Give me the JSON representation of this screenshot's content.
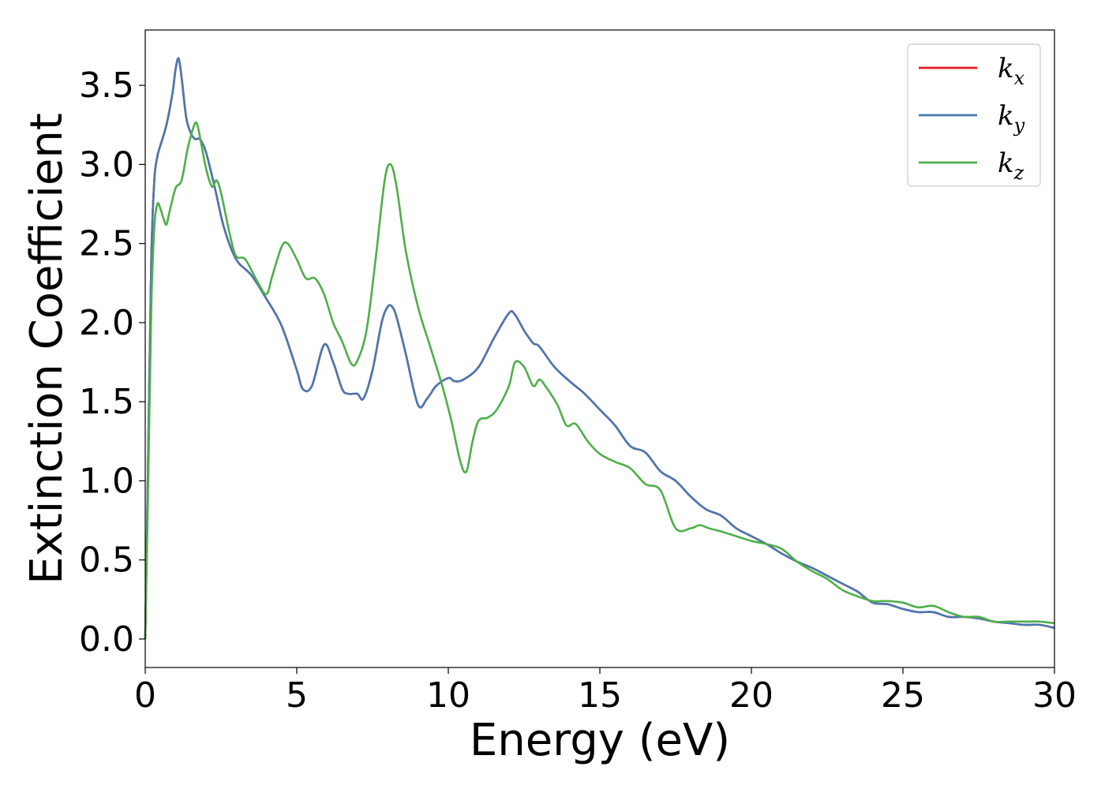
{
  "chart_data": {
    "type": "line",
    "title": "",
    "xlabel": "Energy (eV)",
    "ylabel": "Extinction Coefficient",
    "xlim": [
      0,
      30
    ],
    "ylim": [
      -0.18,
      3.85
    ],
    "xticks": [
      0,
      5,
      10,
      15,
      20,
      25,
      30
    ],
    "xtick_labels": [
      "0",
      "5",
      "10",
      "15",
      "20",
      "25",
      "30"
    ],
    "yticks": [
      0.0,
      0.5,
      1.0,
      1.5,
      2.0,
      2.5,
      3.0,
      3.5
    ],
    "ytick_labels": [
      "0.0",
      "0.5",
      "1.0",
      "1.5",
      "2.0",
      "2.5",
      "3.0",
      "3.5"
    ],
    "grid": false,
    "legend_position": "top-right",
    "legend": [
      {
        "name": "k",
        "sub": "x",
        "color": "#e41a1c"
      },
      {
        "name": "k",
        "sub": "y",
        "color": "#4a78b0"
      },
      {
        "name": "k",
        "sub": "z",
        "color": "#4daf4a"
      }
    ],
    "series": [
      {
        "name": "k_x",
        "color": "#e41a1c",
        "x": [
          0,
          0.1,
          0.2,
          0.3,
          0.4,
          0.5,
          0.7,
          0.9,
          1.0,
          1.1,
          1.2,
          1.35,
          1.5,
          1.65,
          1.8,
          2.0,
          2.3,
          2.6,
          3.0,
          3.5,
          4.0,
          4.5,
          5.0,
          5.2,
          5.5,
          5.9,
          6.2,
          6.5,
          6.7,
          7.0,
          7.2,
          7.5,
          7.8,
          8.0,
          8.15,
          8.3,
          8.6,
          9.0,
          9.3,
          9.6,
          10.0,
          10.2,
          10.5,
          11.0,
          11.5,
          12.0,
          12.2,
          12.5,
          12.8,
          13.0,
          13.5,
          14.0,
          14.5,
          15.0,
          15.5,
          16.0,
          16.5,
          17.0,
          17.5,
          18.0,
          18.5,
          19.0,
          19.5,
          20.0,
          20.5,
          21.0,
          21.5,
          22.0,
          22.5,
          23.0,
          23.5,
          24.0,
          24.5,
          25.0,
          25.5,
          26.0,
          26.5,
          27.0,
          27.5,
          28.0,
          28.5,
          29.0,
          29.5,
          30.0
        ],
        "values": [
          0.0,
          1.2,
          2.4,
          2.9,
          3.05,
          3.12,
          3.25,
          3.45,
          3.6,
          3.67,
          3.55,
          3.3,
          3.2,
          3.16,
          3.16,
          3.08,
          2.85,
          2.6,
          2.4,
          2.3,
          2.15,
          1.98,
          1.7,
          1.58,
          1.6,
          1.86,
          1.75,
          1.58,
          1.55,
          1.55,
          1.52,
          1.7,
          2.0,
          2.1,
          2.1,
          2.03,
          1.8,
          1.48,
          1.52,
          1.6,
          1.65,
          1.63,
          1.64,
          1.72,
          1.9,
          2.06,
          2.05,
          1.95,
          1.87,
          1.85,
          1.72,
          1.63,
          1.55,
          1.45,
          1.35,
          1.22,
          1.18,
          1.06,
          1.0,
          0.9,
          0.82,
          0.78,
          0.7,
          0.65,
          0.6,
          0.54,
          0.49,
          0.45,
          0.4,
          0.35,
          0.3,
          0.23,
          0.22,
          0.19,
          0.17,
          0.17,
          0.14,
          0.14,
          0.13,
          0.11,
          0.1,
          0.09,
          0.09,
          0.07
        ]
      },
      {
        "name": "k_y",
        "color": "#4a78b0",
        "x": [
          0,
          0.1,
          0.2,
          0.3,
          0.4,
          0.5,
          0.7,
          0.9,
          1.0,
          1.1,
          1.2,
          1.35,
          1.5,
          1.65,
          1.8,
          2.0,
          2.3,
          2.6,
          3.0,
          3.5,
          4.0,
          4.5,
          5.0,
          5.2,
          5.5,
          5.9,
          6.2,
          6.5,
          6.7,
          7.0,
          7.2,
          7.5,
          7.8,
          8.0,
          8.15,
          8.3,
          8.6,
          9.0,
          9.3,
          9.6,
          10.0,
          10.2,
          10.5,
          11.0,
          11.5,
          12.0,
          12.2,
          12.5,
          12.8,
          13.0,
          13.5,
          14.0,
          14.5,
          15.0,
          15.5,
          16.0,
          16.5,
          17.0,
          17.5,
          18.0,
          18.5,
          19.0,
          19.5,
          20.0,
          20.5,
          21.0,
          21.5,
          22.0,
          22.5,
          23.0,
          23.5,
          24.0,
          24.5,
          25.0,
          25.5,
          26.0,
          26.5,
          27.0,
          27.5,
          28.0,
          28.5,
          29.0,
          29.5,
          30.0
        ],
        "values": [
          0.0,
          1.2,
          2.4,
          2.9,
          3.05,
          3.12,
          3.25,
          3.45,
          3.6,
          3.67,
          3.55,
          3.3,
          3.2,
          3.16,
          3.16,
          3.08,
          2.85,
          2.6,
          2.4,
          2.3,
          2.15,
          1.98,
          1.7,
          1.58,
          1.6,
          1.86,
          1.75,
          1.58,
          1.55,
          1.55,
          1.52,
          1.7,
          2.0,
          2.1,
          2.1,
          2.03,
          1.8,
          1.48,
          1.52,
          1.6,
          1.65,
          1.63,
          1.64,
          1.72,
          1.9,
          2.06,
          2.05,
          1.95,
          1.87,
          1.85,
          1.72,
          1.63,
          1.55,
          1.45,
          1.35,
          1.22,
          1.18,
          1.06,
          1.0,
          0.9,
          0.82,
          0.78,
          0.7,
          0.65,
          0.6,
          0.54,
          0.49,
          0.45,
          0.4,
          0.35,
          0.3,
          0.23,
          0.22,
          0.19,
          0.17,
          0.17,
          0.14,
          0.14,
          0.13,
          0.11,
          0.1,
          0.09,
          0.09,
          0.07
        ]
      },
      {
        "name": "k_z",
        "color": "#4daf4a",
        "x": [
          0,
          0.1,
          0.2,
          0.3,
          0.4,
          0.5,
          0.6,
          0.7,
          0.8,
          1.0,
          1.2,
          1.4,
          1.6,
          1.7,
          1.8,
          2.0,
          2.2,
          2.35,
          2.5,
          2.8,
          3.0,
          3.3,
          3.7,
          4.0,
          4.2,
          4.5,
          4.7,
          5.0,
          5.3,
          5.6,
          5.9,
          6.2,
          6.5,
          6.8,
          7.0,
          7.3,
          7.6,
          7.9,
          8.1,
          8.3,
          8.6,
          9.0,
          9.4,
          9.8,
          10.1,
          10.4,
          10.6,
          10.8,
          11.0,
          11.3,
          11.6,
          12.0,
          12.2,
          12.5,
          12.8,
          13.0,
          13.2,
          13.6,
          13.9,
          14.2,
          14.6,
          15.0,
          15.5,
          16.0,
          16.5,
          17.0,
          17.5,
          18.0,
          18.3,
          18.6,
          19.0,
          19.5,
          20.0,
          20.5,
          21.0,
          21.5,
          22.0,
          22.5,
          23.0,
          23.5,
          24.0,
          24.5,
          25.0,
          25.5,
          26.0,
          26.5,
          27.0,
          27.5,
          28.0,
          28.5,
          29.0,
          29.5,
          30.0
        ],
        "values": [
          0.0,
          1.0,
          2.1,
          2.6,
          2.75,
          2.72,
          2.66,
          2.62,
          2.7,
          2.85,
          2.9,
          3.1,
          3.24,
          3.26,
          3.18,
          2.98,
          2.86,
          2.9,
          2.82,
          2.55,
          2.42,
          2.4,
          2.26,
          2.18,
          2.3,
          2.48,
          2.5,
          2.4,
          2.28,
          2.28,
          2.18,
          2.0,
          1.88,
          1.74,
          1.76,
          1.95,
          2.4,
          2.9,
          3.0,
          2.85,
          2.45,
          2.1,
          1.85,
          1.6,
          1.38,
          1.12,
          1.06,
          1.25,
          1.38,
          1.4,
          1.45,
          1.6,
          1.75,
          1.72,
          1.6,
          1.64,
          1.6,
          1.48,
          1.35,
          1.36,
          1.25,
          1.17,
          1.12,
          1.08,
          0.98,
          0.94,
          0.7,
          0.7,
          0.72,
          0.7,
          0.68,
          0.65,
          0.62,
          0.6,
          0.57,
          0.49,
          0.43,
          0.38,
          0.31,
          0.27,
          0.24,
          0.24,
          0.23,
          0.2,
          0.21,
          0.17,
          0.14,
          0.14,
          0.11,
          0.11,
          0.11,
          0.11,
          0.1
        ]
      }
    ]
  }
}
